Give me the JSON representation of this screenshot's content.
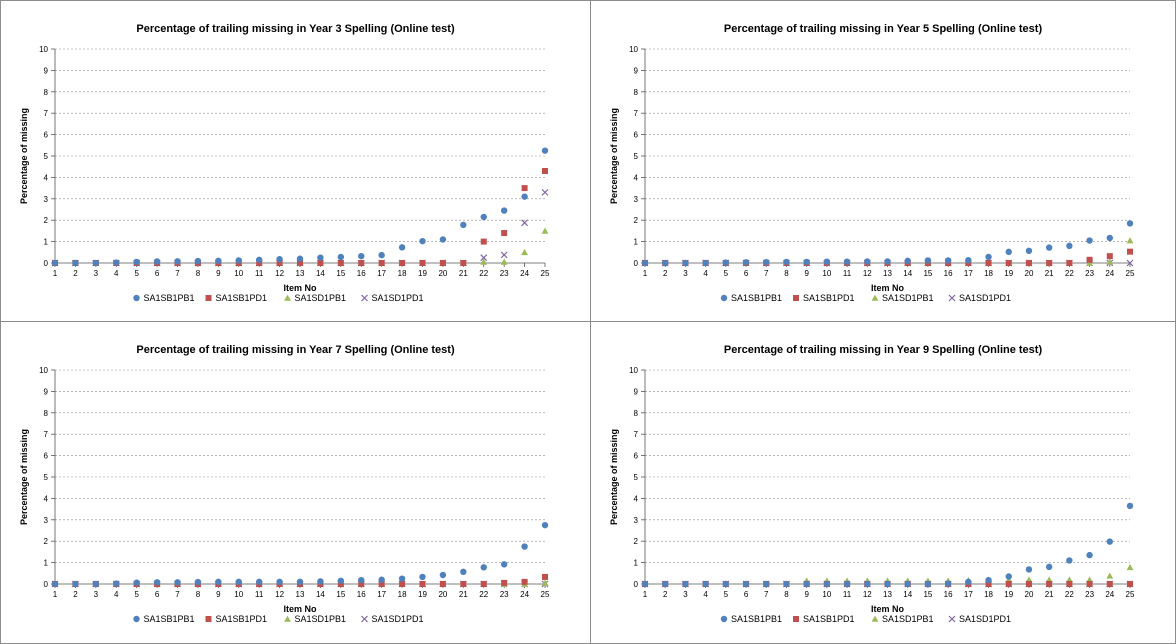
{
  "chart_data": [
    {
      "type": "scatter",
      "title": "Percentage of trailing missing in Year 3 Spelling (Online test)",
      "xlabel": "Item No",
      "ylabel": "Percentage of missing",
      "xlim": [
        1,
        25
      ],
      "ylim": [
        0,
        10
      ],
      "legend_position": "bottom",
      "grid": true,
      "x": [
        1,
        2,
        3,
        4,
        5,
        6,
        7,
        8,
        9,
        10,
        11,
        12,
        13,
        14,
        15,
        16,
        17,
        18,
        19,
        20,
        21,
        22,
        23,
        24,
        25
      ],
      "series": [
        {
          "name": "SA1SB1PB1",
          "values": [
            0.0,
            0.0,
            0.0,
            0.02,
            0.05,
            0.07,
            0.08,
            0.09,
            0.1,
            0.12,
            0.15,
            0.18,
            0.2,
            0.25,
            0.28,
            0.32,
            0.37,
            0.73,
            1.02,
            1.1,
            1.78,
            2.15,
            2.45,
            3.1,
            5.25
          ]
        },
        {
          "name": "SA1SB1PD1",
          "values": [
            0,
            0,
            0,
            0,
            0,
            0,
            0,
            0,
            0,
            0,
            0,
            0,
            0,
            0,
            0,
            0,
            0,
            0,
            0,
            0,
            0,
            1.0,
            1.4,
            3.5,
            4.3
          ]
        },
        {
          "name": "SA1SD1PB1",
          "values": [
            0,
            0,
            0,
            0,
            0,
            0,
            0,
            0,
            0,
            0,
            0,
            0,
            0,
            0,
            0,
            0,
            0,
            0,
            0,
            0,
            0,
            0.05,
            0.05,
            0.5,
            1.5
          ]
        },
        {
          "name": "SA1SD1PD1",
          "values": [
            0,
            0,
            0,
            0,
            0,
            0,
            0,
            0,
            0,
            0,
            0,
            0,
            0,
            0,
            0,
            0,
            0,
            0,
            0,
            0,
            0,
            0.25,
            0.38,
            1.88,
            3.3
          ]
        }
      ]
    },
    {
      "type": "scatter",
      "title": "Percentage of trailing missing in Year 5 Spelling (Online test)",
      "xlabel": "Item No",
      "ylabel": "Percentage of missing",
      "xlim": [
        1,
        25
      ],
      "ylim": [
        0,
        10
      ],
      "legend_position": "bottom",
      "grid": true,
      "x": [
        1,
        2,
        3,
        4,
        5,
        6,
        7,
        8,
        9,
        10,
        11,
        12,
        13,
        14,
        15,
        16,
        17,
        18,
        19,
        20,
        21,
        22,
        23,
        24,
        25
      ],
      "series": [
        {
          "name": "SA1SB1PB1",
          "values": [
            0.0,
            0.0,
            0.0,
            0.0,
            0.02,
            0.03,
            0.04,
            0.05,
            0.05,
            0.06,
            0.06,
            0.07,
            0.07,
            0.1,
            0.12,
            0.12,
            0.13,
            0.28,
            0.52,
            0.57,
            0.72,
            0.8,
            1.05,
            1.17,
            1.85
          ]
        },
        {
          "name": "SA1SB1PD1",
          "values": [
            0,
            0,
            0,
            0,
            0,
            0,
            0,
            0,
            0,
            0,
            0,
            0,
            0,
            0,
            0,
            0,
            0,
            0,
            0,
            0,
            0,
            0,
            0.15,
            0.32,
            0.53
          ]
        },
        {
          "name": "SA1SD1PB1",
          "values": [
            0,
            0,
            0,
            0,
            0,
            0,
            0,
            0,
            0,
            0,
            0,
            0,
            0,
            0,
            0,
            0,
            0,
            0,
            0,
            0,
            0,
            0,
            0,
            0.05,
            1.05
          ]
        },
        {
          "name": "SA1SD1PD1",
          "values": [
            0,
            0,
            0,
            0,
            0,
            0,
            0,
            0,
            0,
            0,
            0,
            0,
            0,
            0,
            0,
            0,
            0,
            0,
            0,
            0,
            0,
            0,
            0,
            0,
            0
          ]
        }
      ]
    },
    {
      "type": "scatter",
      "title": "Percentage of trailing missing in Year 7 Spelling (Online test)",
      "xlabel": "Item No",
      "ylabel": "Percentage of missing",
      "xlim": [
        1,
        25
      ],
      "ylim": [
        0,
        10
      ],
      "legend_position": "bottom",
      "grid": true,
      "x": [
        1,
        2,
        3,
        4,
        5,
        6,
        7,
        8,
        9,
        10,
        11,
        12,
        13,
        14,
        15,
        16,
        17,
        18,
        19,
        20,
        21,
        22,
        23,
        24,
        25
      ],
      "series": [
        {
          "name": "SA1SB1PB1",
          "values": [
            0.0,
            0.0,
            0.0,
            0.02,
            0.06,
            0.08,
            0.08,
            0.09,
            0.1,
            0.1,
            0.1,
            0.1,
            0.1,
            0.12,
            0.15,
            0.18,
            0.2,
            0.25,
            0.33,
            0.42,
            0.57,
            0.78,
            0.92,
            1.75,
            2.75
          ]
        },
        {
          "name": "SA1SB1PD1",
          "values": [
            0,
            0,
            0,
            0,
            0,
            0,
            0,
            0,
            0,
            0,
            0,
            0,
            0,
            0,
            0,
            0,
            0,
            0,
            0,
            0,
            0,
            0,
            0.05,
            0.1,
            0.33
          ]
        },
        {
          "name": "SA1SD1PB1",
          "values": [
            0,
            0,
            0,
            0,
            0,
            0,
            0,
            0,
            0,
            0,
            0,
            0,
            0,
            0,
            0,
            0,
            0,
            0,
            0,
            0,
            0,
            0,
            0,
            0,
            0.05
          ]
        },
        {
          "name": "SA1SD1PD1",
          "values": [
            0,
            0,
            0,
            0,
            0,
            0,
            0,
            0,
            0,
            0,
            0,
            0,
            0,
            0,
            0,
            0,
            0,
            0,
            0,
            0,
            0,
            0,
            0,
            0,
            0
          ]
        }
      ]
    },
    {
      "type": "scatter",
      "title": "Percentage of trailing missing in Year 9 Spelling (Online test)",
      "xlabel": "Item No",
      "ylabel": "Percentage of missing",
      "xlim": [
        1,
        25
      ],
      "ylim": [
        0,
        10
      ],
      "legend_position": "bottom",
      "grid": true,
      "x": [
        1,
        2,
        3,
        4,
        5,
        6,
        7,
        8,
        9,
        10,
        11,
        12,
        13,
        14,
        15,
        16,
        17,
        18,
        19,
        20,
        21,
        22,
        23,
        24,
        25
      ],
      "series": [
        {
          "name": "SA1SB1PB1",
          "values": [
            0.0,
            0.0,
            0.0,
            0.0,
            0.0,
            0.0,
            0.0,
            0.0,
            0.0,
            0.0,
            0.0,
            0.0,
            0.0,
            0.0,
            0.0,
            0.02,
            0.1,
            0.18,
            0.35,
            0.68,
            0.8,
            1.1,
            1.35,
            1.98,
            3.65
          ]
        },
        {
          "name": "SA1SB1PD1",
          "values": [
            0,
            0,
            0,
            0,
            0,
            0,
            0,
            0,
            0,
            0,
            0,
            0,
            0,
            0,
            0,
            0,
            0,
            0,
            0,
            0,
            0,
            0,
            0,
            0,
            0
          ]
        },
        {
          "name": "SA1SD1PB1",
          "values": [
            0,
            0,
            0,
            0,
            0,
            0,
            0,
            0,
            0.15,
            0.15,
            0.15,
            0.15,
            0.15,
            0.15,
            0.15,
            0.15,
            0.17,
            0.2,
            0.2,
            0.2,
            0.2,
            0.2,
            0.2,
            0.38,
            0.78
          ]
        },
        {
          "name": "SA1SD1PD1",
          "values": [
            0,
            0,
            0,
            0,
            0,
            0,
            0,
            0,
            0,
            0,
            0,
            0,
            0,
            0,
            0,
            0,
            0,
            0,
            0,
            0,
            0,
            0,
            0,
            0,
            0
          ]
        }
      ]
    }
  ],
  "series_style": {
    "SA1SB1PB1": {
      "marker": "circle",
      "color": "#4f81bd"
    },
    "SA1SB1PD1": {
      "marker": "square",
      "color": "#c0504d"
    },
    "SA1SD1PB1": {
      "marker": "triangle",
      "color": "#9bbb59"
    },
    "SA1SD1PD1": {
      "marker": "cross",
      "color": "#8064a2"
    }
  }
}
